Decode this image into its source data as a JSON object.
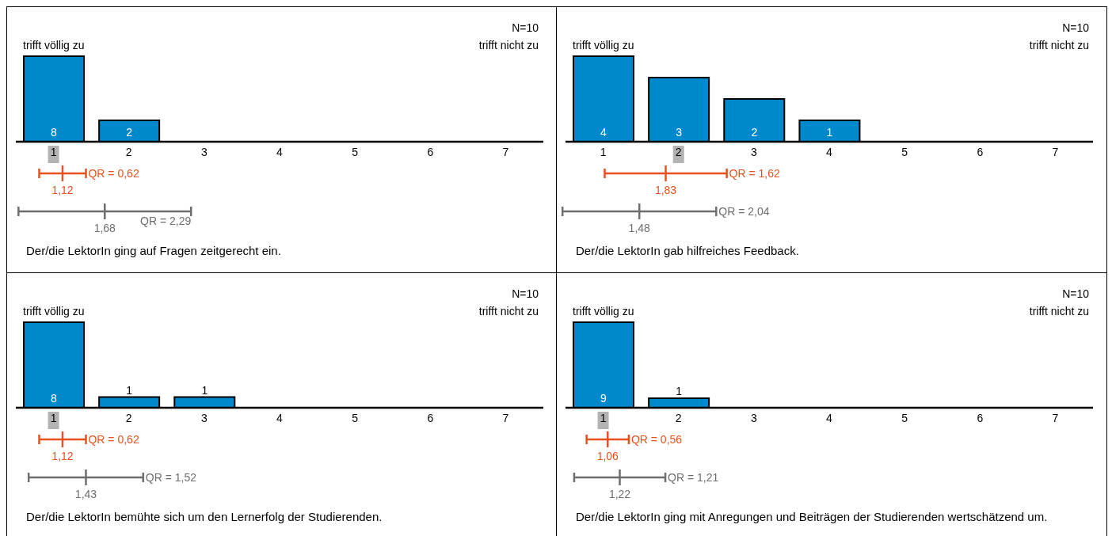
{
  "chart_data": [
    {
      "type": "bar",
      "title": "Der/die LektorIn ging auf Fragen zeitgerecht ein.",
      "x": [
        1,
        2,
        3,
        4,
        5,
        6,
        7
      ],
      "xlim": [
        0.5,
        7.5
      ],
      "xticks": [
        1,
        2,
        3,
        4,
        5,
        6,
        7
      ],
      "values": [
        8,
        2,
        0,
        0,
        0,
        0,
        0
      ],
      "color": "#0088cc",
      "value_labels": [
        "8",
        "2",
        null,
        null,
        null,
        null,
        null
      ],
      "annotations": [
        "N=10",
        "trifft völlig zu",
        "trifft nicht zu",
        "QR = 0,62",
        "1,12",
        "QR = 2,29",
        "1,68"
      ]
    },
    {
      "type": "bar",
      "title": "Der/die LektorIn gab hilfreiches Feedback.",
      "x": [
        1,
        2,
        3,
        4,
        5,
        6,
        7
      ],
      "xlim": [
        0.5,
        7.5
      ],
      "xticks": [
        1,
        2,
        3,
        4,
        5,
        6,
        7
      ],
      "values": [
        4,
        3,
        2,
        1,
        0,
        0,
        0
      ],
      "color": "#0088cc",
      "value_labels": [
        "4",
        "3",
        "2",
        "1",
        null,
        null,
        null
      ],
      "annotations": [
        "N=10",
        "trifft völlig zu",
        "trifft nicht zu",
        "QR = 1,62",
        "1,83",
        "QR = 2,04",
        "1,48"
      ]
    },
    {
      "type": "bar",
      "title": "Der/die LektorIn bemühte sich um den Lernerfolg der Studierenden.",
      "x": [
        1,
        2,
        3,
        4,
        5,
        6,
        7
      ],
      "xlim": [
        0.5,
        7.5
      ],
      "xticks": [
        1,
        2,
        3,
        4,
        5,
        6,
        7
      ],
      "values": [
        8,
        1,
        1,
        0,
        0,
        0,
        0
      ],
      "color": "#0088cc",
      "value_labels": [
        "8",
        "1",
        "1",
        null,
        null,
        null,
        null
      ],
      "annotations": [
        "N=10",
        "trifft völlig zu",
        "trifft nicht zu",
        "QR = 0,62",
        "1,12",
        "QR = 1,52",
        "1,43"
      ]
    },
    {
      "type": "bar",
      "title": "Der/die LektorIn ging mit Anregungen und Beiträgen der Studierenden wertschätzend um.",
      "x": [
        1,
        2,
        3,
        4,
        5,
        6,
        7
      ],
      "xlim": [
        0.5,
        7.5
      ],
      "xticks": [
        1,
        2,
        3,
        4,
        5,
        6,
        7
      ],
      "values": [
        9,
        1,
        0,
        0,
        0,
        0,
        0
      ],
      "color": "#0088cc",
      "value_labels": [
        "9",
        "1",
        null,
        null,
        null,
        null,
        null
      ],
      "annotations": [
        "N=10",
        "trifft völlig zu",
        "trifft nicht zu",
        "QR = 0,56",
        "1,06",
        "QR = 1,21",
        "1,22"
      ]
    }
  ]
}
